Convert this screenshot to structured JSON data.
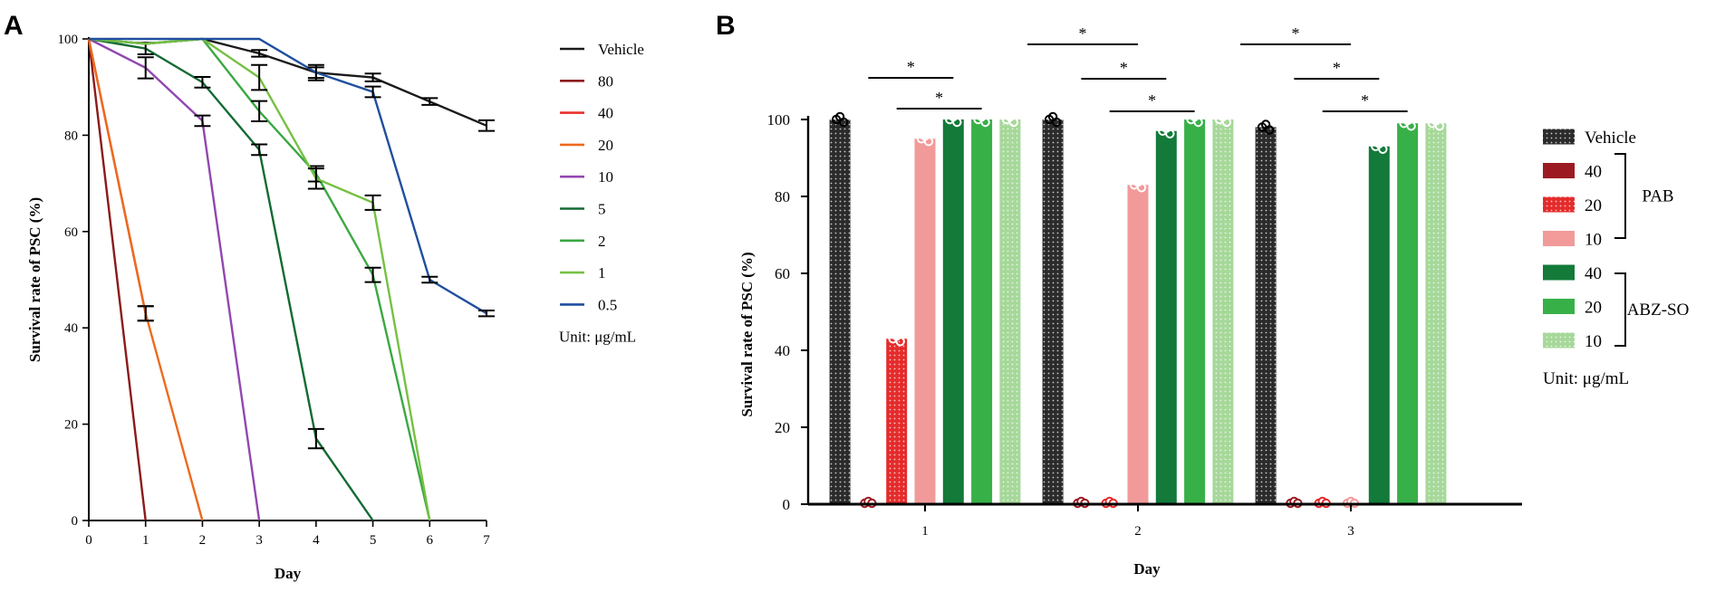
{
  "chart_data": [
    {
      "panel": "A",
      "type": "line",
      "xlabel": "Day",
      "ylabel": "Survival rate of PSC (%)",
      "x": [
        0,
        1,
        2,
        3,
        4,
        5,
        6,
        7
      ],
      "xlim": [
        0,
        7
      ],
      "ylim": [
        0,
        100
      ],
      "yticks": [
        0,
        20,
        40,
        60,
        80,
        100
      ],
      "legend_unit": "Unit: μg/mL",
      "series": [
        {
          "name": "Vehicle",
          "color": "#1a1a1a",
          "x": [
            0,
            1,
            2,
            3,
            4,
            5,
            6,
            7
          ],
          "y": [
            100,
            99,
            100,
            97,
            93,
            92,
            87,
            82
          ],
          "err": [
            0,
            0,
            0,
            0.7,
            1.6,
            0.8,
            0.7,
            1.1
          ]
        },
        {
          "name": "80",
          "color": "#8b1a1a",
          "x": [
            0,
            1
          ],
          "y": [
            100,
            0
          ],
          "err": [
            0,
            0
          ]
        },
        {
          "name": "40",
          "color": "#e8312b",
          "x": [
            0,
            1
          ],
          "y": [
            100,
            43
          ],
          "err": [
            0,
            1.5
          ]
        },
        {
          "name": "20",
          "color": "#ec6a1e",
          "x": [
            0,
            1,
            2
          ],
          "y": [
            100,
            43,
            0
          ],
          "err": [
            0,
            1.5,
            0
          ]
        },
        {
          "name": "10",
          "color": "#9147b0",
          "x": [
            0,
            1,
            2,
            3
          ],
          "y": [
            100,
            94,
            83,
            0
          ],
          "err": [
            0,
            2.2,
            1.1,
            0
          ]
        },
        {
          "name": "5",
          "color": "#136b33",
          "x": [
            0,
            1,
            2,
            3,
            4,
            5
          ],
          "y": [
            100,
            98,
            91,
            77,
            17,
            0
          ],
          "err": [
            0,
            1.2,
            1.1,
            1.1,
            2,
            0
          ]
        },
        {
          "name": "2",
          "color": "#3ba843",
          "x": [
            0,
            1,
            2,
            3,
            4,
            5,
            6
          ],
          "y": [
            100,
            99,
            100,
            85,
            72,
            51,
            0
          ],
          "err": [
            0,
            0,
            0,
            2.1,
            1.6,
            1.5,
            0
          ]
        },
        {
          "name": "1",
          "color": "#76c043",
          "x": [
            0,
            1,
            2,
            3,
            4,
            5,
            6
          ],
          "y": [
            100,
            99,
            100,
            92,
            71,
            66,
            0
          ],
          "err": [
            0,
            0,
            0,
            2.6,
            2.1,
            1.5,
            0
          ]
        },
        {
          "name": "0.5",
          "color": "#1f4f9e",
          "x": [
            0,
            1,
            2,
            3,
            4,
            5,
            6,
            7
          ],
          "y": [
            100,
            100,
            100,
            100,
            93,
            89,
            50,
            43
          ],
          "err": [
            0,
            0,
            0,
            0,
            1.1,
            1.1,
            0.6,
            0.6
          ]
        }
      ]
    },
    {
      "panel": "B",
      "type": "bar",
      "xlabel": "Day",
      "ylabel": "Survival rate of PSC (%)",
      "categories": [
        "1",
        "2",
        "3"
      ],
      "ylim": [
        0,
        100
      ],
      "yticks": [
        0,
        20,
        40,
        60,
        80,
        100
      ],
      "legend_unit": "Unit: μg/mL",
      "groups": [
        {
          "label": "PAB",
          "members": [
            "40",
            "20",
            "10"
          ]
        },
        {
          "label": "ABZ-SO",
          "members": [
            "40",
            "20",
            "10"
          ]
        }
      ],
      "series": [
        {
          "name": "Vehicle",
          "group": "",
          "color": "#2b2b2b",
          "dotted": true,
          "values": [
            100,
            100,
            98
          ]
        },
        {
          "name": "40",
          "group": "PAB",
          "color": "#9c1b22",
          "dotted": false,
          "values": [
            0,
            0,
            0
          ]
        },
        {
          "name": "20",
          "group": "PAB",
          "color": "#e52b2b",
          "dotted": true,
          "values": [
            43,
            0,
            0
          ]
        },
        {
          "name": "10",
          "group": "PAB",
          "color": "#f29a9a",
          "dotted": false,
          "values": [
            95,
            83,
            0
          ]
        },
        {
          "name": "40",
          "group": "ABZ-SO",
          "color": "#137a3a",
          "dotted": false,
          "values": [
            100,
            97,
            93
          ]
        },
        {
          "name": "20",
          "group": "ABZ-SO",
          "color": "#38b048",
          "dotted": false,
          "values": [
            100,
            100,
            99
          ]
        },
        {
          "name": "10",
          "group": "ABZ-SO",
          "color": "#a6d89a",
          "dotted": true,
          "values": [
            100,
            100,
            99
          ]
        }
      ],
      "significance": [
        {
          "day": "1",
          "from": "PAB 40",
          "to": "ABZ-SO 40",
          "label": "*"
        },
        {
          "day": "1",
          "from": "PAB 20",
          "to": "ABZ-SO 20",
          "label": "*"
        },
        {
          "day": "2",
          "from": "Vehicle",
          "to": "PAB 10",
          "label": "*"
        },
        {
          "day": "2",
          "from": "PAB 40",
          "to": "ABZ-SO 40",
          "label": "*"
        },
        {
          "day": "2",
          "from": "PAB 20",
          "to": "ABZ-SO 20",
          "label": "*"
        },
        {
          "day": "3",
          "from": "Vehicle",
          "to": "PAB 10",
          "label": "*"
        },
        {
          "day": "3",
          "from": "PAB 40",
          "to": "ABZ-SO 40",
          "label": "*"
        },
        {
          "day": "3",
          "from": "PAB 20",
          "to": "ABZ-SO 20",
          "label": "*"
        }
      ]
    }
  ]
}
